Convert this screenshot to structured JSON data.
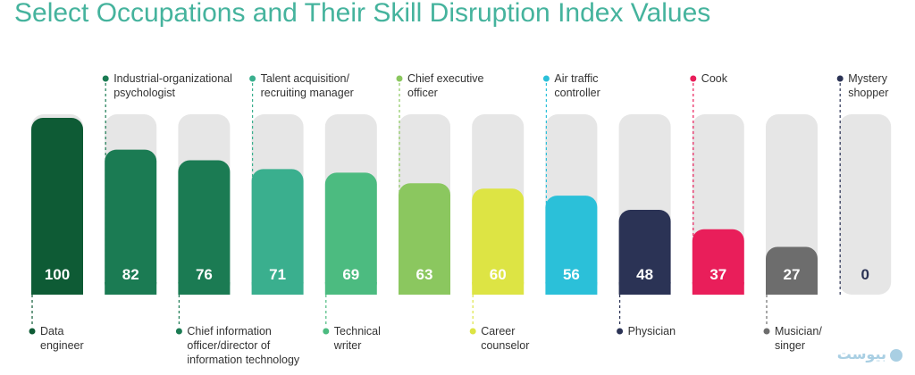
{
  "chart_data": {
    "type": "bar",
    "title": "Select Occupations and Their Skill Disruption Index Values",
    "ylim": [
      0,
      100
    ],
    "categories": [
      {
        "label": "Data\nengineer",
        "value": 100,
        "color": "#0e5b35",
        "pos": "bottom"
      },
      {
        "label": "Industrial-organizational\npsychologist",
        "value": 82,
        "color": "#1b7b53",
        "pos": "top"
      },
      {
        "label": "Chief information\nofficer/director of\ninformation technology",
        "value": 76,
        "color": "#1b7b53",
        "pos": "bottom"
      },
      {
        "label": "Talent acquisition/\nrecruiting manager",
        "value": 71,
        "color": "#3aaf8e",
        "pos": "top"
      },
      {
        "label": "Technical\nwriter",
        "value": 69,
        "color": "#4cbb80",
        "pos": "bottom"
      },
      {
        "label": "Chief executive\nofficer",
        "value": 63,
        "color": "#8bc75f",
        "pos": "top"
      },
      {
        "label": "Career\ncounselor",
        "value": 60,
        "color": "#dde444",
        "pos": "bottom"
      },
      {
        "label": "Air traffic\ncontroller",
        "value": 56,
        "color": "#2bc0d9",
        "pos": "top"
      },
      {
        "label": "Physician",
        "value": 48,
        "color": "#2b3355",
        "pos": "bottom"
      },
      {
        "label": "Cook",
        "value": 37,
        "color": "#e91e5a",
        "pos": "top"
      },
      {
        "label": "Musician/\nsinger",
        "value": 27,
        "color": "#6d6d6d",
        "pos": "bottom"
      },
      {
        "label": "Mystery\nshopper",
        "value": 0,
        "color": "#2b3355",
        "pos": "top"
      }
    ]
  },
  "watermark": "بیوست"
}
